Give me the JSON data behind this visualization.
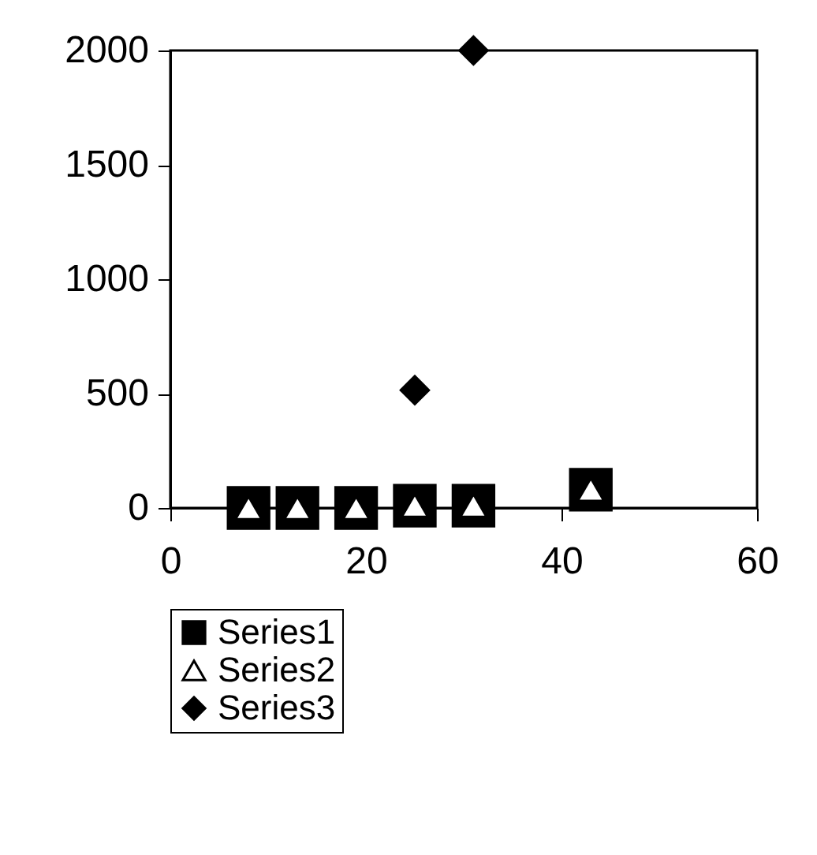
{
  "chart_data": {
    "type": "scatter",
    "series": [
      {
        "name": "Series1",
        "color": "#000000",
        "marker": "square",
        "x": [
          8,
          13,
          19,
          25,
          31,
          43
        ],
        "values": [
          0,
          0,
          0,
          10,
          10,
          80
        ]
      },
      {
        "name": "Series2",
        "color": "#ffffff",
        "marker": "triangle",
        "x": [
          8,
          13,
          19,
          25,
          31,
          43
        ],
        "values": [
          0,
          0,
          0,
          10,
          10,
          80
        ]
      },
      {
        "name": "Series3",
        "color": "#000000",
        "marker": "diamond",
        "x": [
          25,
          31
        ],
        "values": [
          515,
          2000
        ]
      }
    ],
    "xlim": [
      0,
      60
    ],
    "xticks": [
      0,
      20,
      40,
      60
    ],
    "ylim": [
      0,
      2000
    ],
    "yticks": [
      0,
      500,
      1000,
      1500,
      2000
    ],
    "grid": false,
    "legend": "bottom"
  }
}
